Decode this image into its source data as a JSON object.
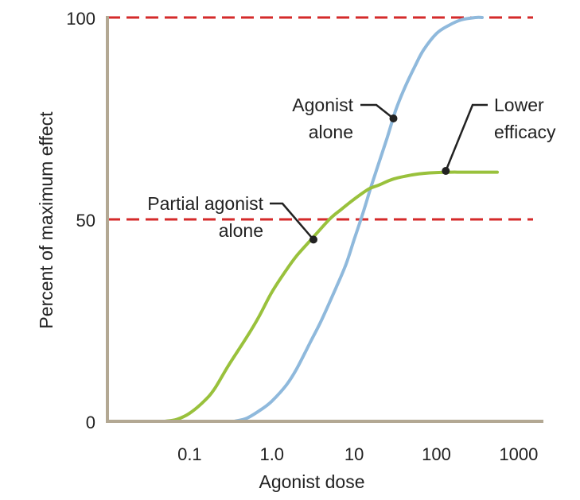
{
  "chart_data": {
    "type": "line",
    "xlabel": "Agonist dose",
    "ylabel": "Percent of maximum effect",
    "x_scale": "log",
    "xlim": [
      0.01,
      2000
    ],
    "ylim": [
      0,
      100
    ],
    "x_ticks": [
      {
        "value": 0.1,
        "label": "0.1"
      },
      {
        "value": 1,
        "label": "1.0"
      },
      {
        "value": 10,
        "label": "10"
      },
      {
        "value": 100,
        "label": "100"
      },
      {
        "value": 1000,
        "label": "1000"
      }
    ],
    "y_ticks": [
      {
        "value": 0,
        "label": "0"
      },
      {
        "value": 50,
        "label": "50"
      },
      {
        "value": 100,
        "label": "100"
      }
    ],
    "reference_lines": [
      {
        "y": 100,
        "color": "#d42a2a",
        "style": "dashed"
      },
      {
        "y": 50,
        "color": "#d42a2a",
        "style": "dashed"
      }
    ],
    "series": [
      {
        "color": "#8fb9dc",
        "x": [
          0.35,
          0.5,
          0.75,
          1,
          1.5,
          2,
          3,
          4,
          6,
          8,
          10,
          13,
          16,
          20,
          25,
          32,
          40,
          55,
          70,
          100,
          140,
          200,
          300,
          360
        ],
        "y": [
          0,
          0.8,
          3,
          5,
          9,
          13,
          20,
          25,
          33,
          39,
          45,
          52,
          58,
          64,
          70,
          77,
          82,
          88,
          92,
          96,
          98,
          99.4,
          100,
          100
        ]
      },
      {
        "color": "#99c13c",
        "x": [
          0.05,
          0.07,
          0.1,
          0.15,
          0.2,
          0.3,
          0.5,
          0.7,
          1,
          1.5,
          2,
          3,
          5,
          7,
          10,
          15,
          20,
          30,
          50,
          70,
          100,
          150,
          200,
          300,
          550
        ],
        "y": [
          0,
          0.5,
          2,
          5,
          8,
          14,
          21,
          26,
          32,
          37.5,
          41,
          45,
          50,
          52.5,
          55,
          57.5,
          58.5,
          60,
          61,
          61.4,
          61.6,
          61.7,
          61.7,
          61.7,
          61.7
        ]
      }
    ],
    "annotations": [
      {
        "lines": [
          "Agonist",
          "alone"
        ],
        "anchor": "right",
        "point_x": 30,
        "point_y": 75
      },
      {
        "lines": [
          "Lower",
          "efficacy"
        ],
        "anchor": "left",
        "point_x": 130,
        "point_y": 62
      },
      {
        "lines": [
          "Partial agonist",
          "alone"
        ],
        "anchor": "right",
        "point_x": 3.2,
        "point_y": 45
      }
    ]
  }
}
